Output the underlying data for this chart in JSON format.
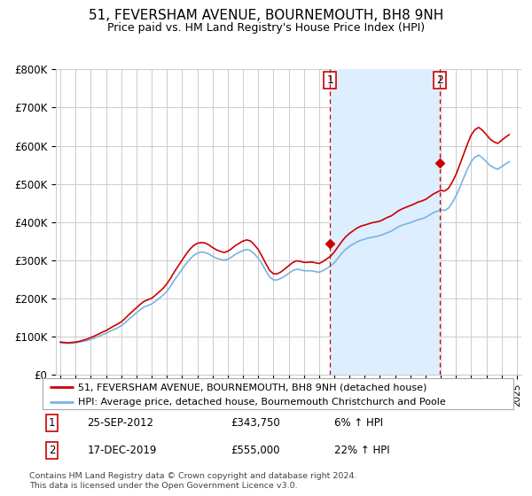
{
  "title": "51, FEVERSHAM AVENUE, BOURNEMOUTH, BH8 9NH",
  "subtitle": "Price paid vs. HM Land Registry's House Price Index (HPI)",
  "title_fontsize": 11,
  "subtitle_fontsize": 9,
  "background_color": "#ffffff",
  "plot_bg_color": "#ffffff",
  "grid_color": "#cccccc",
  "shade_color": "#ddeeff",
  "ylim": [
    0,
    800000
  ],
  "yticks": [
    0,
    100000,
    200000,
    300000,
    400000,
    500000,
    600000,
    700000,
    800000
  ],
  "ytick_labels": [
    "£0",
    "£100K",
    "£200K",
    "£300K",
    "£400K",
    "£500K",
    "£600K",
    "£700K",
    "£800K"
  ],
  "xlim_start": 1994.7,
  "xlim_end": 2025.3,
  "xticks": [
    1995,
    1996,
    1997,
    1998,
    1999,
    2000,
    2001,
    2002,
    2003,
    2004,
    2005,
    2006,
    2007,
    2008,
    2009,
    2010,
    2011,
    2012,
    2013,
    2014,
    2015,
    2016,
    2017,
    2018,
    2019,
    2020,
    2021,
    2022,
    2023,
    2024,
    2025
  ],
  "sale1_x": 2012.73,
  "sale1_y": 343750,
  "sale1_label": "1",
  "sale2_x": 2019.96,
  "sale2_y": 555000,
  "sale2_label": "2",
  "sale_color": "#cc0000",
  "hpi_color": "#7ab4e0",
  "property_color": "#cc0000",
  "legend_property": "51, FEVERSHAM AVENUE, BOURNEMOUTH, BH8 9NH (detached house)",
  "legend_hpi": "HPI: Average price, detached house, Bournemouth Christchurch and Poole",
  "annotation1_date": "25-SEP-2012",
  "annotation1_price": "£343,750",
  "annotation1_hpi": "6% ↑ HPI",
  "annotation2_date": "17-DEC-2019",
  "annotation2_price": "£555,000",
  "annotation2_hpi": "22% ↑ HPI",
  "footnote": "Contains HM Land Registry data © Crown copyright and database right 2024.\nThis data is licensed under the Open Government Licence v3.0.",
  "hpi_data_x": [
    1995.0,
    1995.25,
    1995.5,
    1995.75,
    1996.0,
    1996.25,
    1996.5,
    1996.75,
    1997.0,
    1997.25,
    1997.5,
    1997.75,
    1998.0,
    1998.25,
    1998.5,
    1998.75,
    1999.0,
    1999.25,
    1999.5,
    1999.75,
    2000.0,
    2000.25,
    2000.5,
    2000.75,
    2001.0,
    2001.25,
    2001.5,
    2001.75,
    2002.0,
    2002.25,
    2002.5,
    2002.75,
    2003.0,
    2003.25,
    2003.5,
    2003.75,
    2004.0,
    2004.25,
    2004.5,
    2004.75,
    2005.0,
    2005.25,
    2005.5,
    2005.75,
    2006.0,
    2006.25,
    2006.5,
    2006.75,
    2007.0,
    2007.25,
    2007.5,
    2007.75,
    2008.0,
    2008.25,
    2008.5,
    2008.75,
    2009.0,
    2009.25,
    2009.5,
    2009.75,
    2010.0,
    2010.25,
    2010.5,
    2010.75,
    2011.0,
    2011.25,
    2011.5,
    2011.75,
    2012.0,
    2012.25,
    2012.5,
    2012.75,
    2013.0,
    2013.25,
    2013.5,
    2013.75,
    2014.0,
    2014.25,
    2014.5,
    2014.75,
    2015.0,
    2015.25,
    2015.5,
    2015.75,
    2016.0,
    2016.25,
    2016.5,
    2016.75,
    2017.0,
    2017.25,
    2017.5,
    2017.75,
    2018.0,
    2018.25,
    2018.5,
    2018.75,
    2019.0,
    2019.25,
    2019.5,
    2019.75,
    2020.0,
    2020.25,
    2020.5,
    2020.75,
    2021.0,
    2021.25,
    2021.5,
    2021.75,
    2022.0,
    2022.25,
    2022.5,
    2022.75,
    2023.0,
    2023.25,
    2023.5,
    2023.75,
    2024.0,
    2024.25,
    2024.5
  ],
  "hpi_data_y": [
    83000,
    82000,
    81500,
    82000,
    83000,
    85000,
    87000,
    89000,
    92000,
    96000,
    100000,
    104000,
    108000,
    113000,
    118000,
    122000,
    128000,
    136000,
    145000,
    153000,
    162000,
    170000,
    177000,
    181000,
    185000,
    192000,
    200000,
    208000,
    218000,
    232000,
    248000,
    262000,
    276000,
    290000,
    302000,
    312000,
    318000,
    321000,
    320000,
    316000,
    310000,
    305000,
    302000,
    300000,
    302000,
    308000,
    315000,
    320000,
    325000,
    328000,
    325000,
    316000,
    305000,
    290000,
    272000,
    256000,
    248000,
    248000,
    252000,
    258000,
    265000,
    272000,
    276000,
    275000,
    272000,
    272000,
    272000,
    270000,
    268000,
    272000,
    278000,
    284000,
    293000,
    305000,
    318000,
    328000,
    336000,
    342000,
    348000,
    352000,
    355000,
    358000,
    360000,
    362000,
    364000,
    368000,
    372000,
    376000,
    382000,
    388000,
    392000,
    395000,
    398000,
    402000,
    406000,
    408000,
    412000,
    418000,
    424000,
    428000,
    432000,
    430000,
    436000,
    450000,
    468000,
    490000,
    515000,
    538000,
    558000,
    570000,
    575000,
    568000,
    558000,
    548000,
    542000,
    538000,
    545000,
    552000,
    558000
  ],
  "property_data_x": [
    1995.0,
    1995.25,
    1995.5,
    1995.75,
    1996.0,
    1996.25,
    1996.5,
    1996.75,
    1997.0,
    1997.25,
    1997.5,
    1997.75,
    1998.0,
    1998.25,
    1998.5,
    1998.75,
    1999.0,
    1999.25,
    1999.5,
    1999.75,
    2000.0,
    2000.25,
    2000.5,
    2000.75,
    2001.0,
    2001.25,
    2001.5,
    2001.75,
    2002.0,
    2002.25,
    2002.5,
    2002.75,
    2003.0,
    2003.25,
    2003.5,
    2003.75,
    2004.0,
    2004.25,
    2004.5,
    2004.75,
    2005.0,
    2005.25,
    2005.5,
    2005.75,
    2006.0,
    2006.25,
    2006.5,
    2006.75,
    2007.0,
    2007.25,
    2007.5,
    2007.75,
    2008.0,
    2008.25,
    2008.5,
    2008.75,
    2009.0,
    2009.25,
    2009.5,
    2009.75,
    2010.0,
    2010.25,
    2010.5,
    2010.75,
    2011.0,
    2011.25,
    2011.5,
    2011.75,
    2012.0,
    2012.25,
    2012.5,
    2012.75,
    2013.0,
    2013.25,
    2013.5,
    2013.75,
    2014.0,
    2014.25,
    2014.5,
    2014.75,
    2015.0,
    2015.25,
    2015.5,
    2015.75,
    2016.0,
    2016.25,
    2016.5,
    2016.75,
    2017.0,
    2017.25,
    2017.5,
    2017.75,
    2018.0,
    2018.25,
    2018.5,
    2018.75,
    2019.0,
    2019.25,
    2019.5,
    2019.75,
    2020.0,
    2020.25,
    2020.5,
    2020.75,
    2021.0,
    2021.25,
    2021.5,
    2021.75,
    2022.0,
    2022.25,
    2022.5,
    2022.75,
    2023.0,
    2023.25,
    2023.5,
    2023.75,
    2024.0,
    2024.25,
    2024.5
  ],
  "property_data_y": [
    85000,
    84000,
    83000,
    84000,
    85000,
    87000,
    90000,
    93000,
    97000,
    101000,
    106000,
    111000,
    115000,
    121000,
    127000,
    132000,
    138000,
    147000,
    157000,
    166000,
    175000,
    184000,
    192000,
    196000,
    200000,
    208000,
    217000,
    226000,
    238000,
    253000,
    270000,
    285000,
    300000,
    315000,
    328000,
    338000,
    344000,
    346000,
    345000,
    340000,
    333000,
    327000,
    323000,
    320000,
    323000,
    330000,
    338000,
    344000,
    350000,
    353000,
    350000,
    340000,
    328000,
    310000,
    291000,
    273000,
    264000,
    264000,
    269000,
    277000,
    285000,
    293000,
    298000,
    297000,
    294000,
    294000,
    295000,
    293000,
    291000,
    296000,
    303000,
    310000,
    321000,
    335000,
    349000,
    361000,
    370000,
    377000,
    384000,
    389000,
    392000,
    395000,
    398000,
    400000,
    402000,
    407000,
    412000,
    416000,
    423000,
    430000,
    435000,
    439000,
    443000,
    447000,
    452000,
    455000,
    459000,
    466000,
    473000,
    478000,
    483000,
    481000,
    488000,
    504000,
    524000,
    550000,
    577000,
    604000,
    628000,
    642000,
    648000,
    640000,
    629000,
    617000,
    610000,
    606000,
    614000,
    622000,
    629000
  ]
}
